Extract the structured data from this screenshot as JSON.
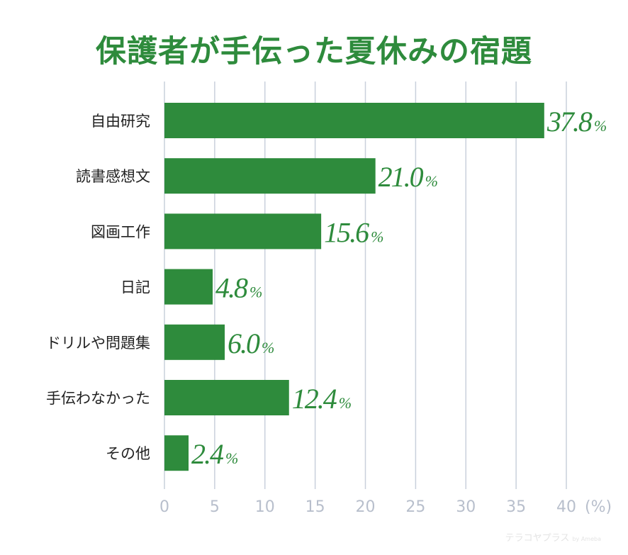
{
  "title": "保護者が手伝った夏休みの宿題",
  "watermark": {
    "text": "テラコヤプラス",
    "suffix": "by Ameba"
  },
  "colors": {
    "bar": "#2e8b3c",
    "title": "#2e8b3c",
    "grid": "#c9d0dc",
    "tick": "#b8bfcc"
  },
  "chart_data": {
    "type": "bar",
    "orientation": "horizontal",
    "title": "保護者が手伝った夏休みの宿題",
    "categories": [
      "自由研究",
      "読書感想文",
      "図画工作",
      "日記",
      "ドリルや問題集",
      "手伝わなかった",
      "その他"
    ],
    "values": [
      37.8,
      21.0,
      15.6,
      4.8,
      6.0,
      12.4,
      2.4
    ],
    "value_labels": [
      "37.8",
      "21.0",
      "15.6",
      "4.8",
      "6.0",
      "12.4",
      "2.4"
    ],
    "value_suffix": "%",
    "xticks": [
      0,
      5,
      10,
      15,
      20,
      25,
      30,
      35,
      40
    ],
    "xunit": "(%)",
    "xlim": [
      0,
      40
    ],
    "grid": true
  }
}
